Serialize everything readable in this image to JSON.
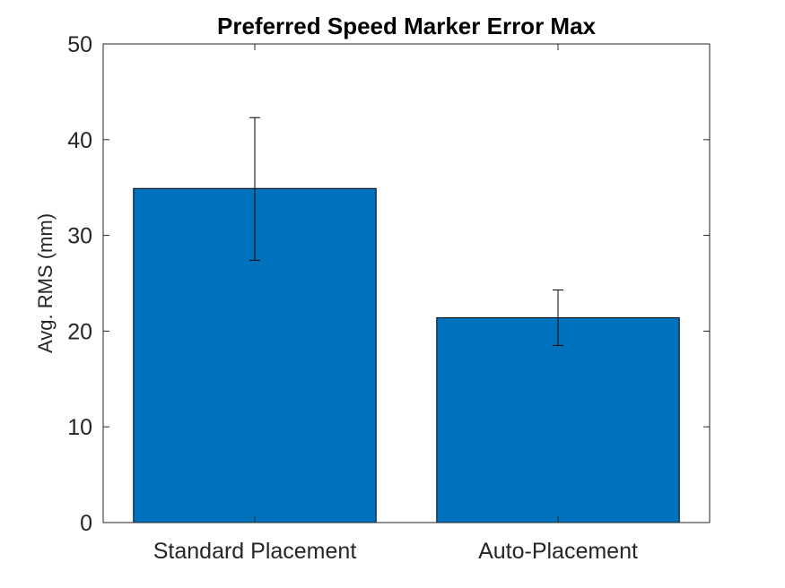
{
  "chart_data": {
    "type": "bar",
    "title": "Preferred Speed Marker Error Max",
    "xlabel": "",
    "ylabel": "Avg. RMS (mm)",
    "categories": [
      "Standard Placement",
      "Auto-Placement"
    ],
    "values": [
      34.9,
      21.4
    ],
    "error_low": [
      27.4,
      18.5
    ],
    "error_high": [
      42.3,
      24.3
    ],
    "ylim": [
      0,
      50
    ],
    "yticks": [
      0,
      10,
      20,
      30,
      40,
      50
    ],
    "bar_color": "#0072BD",
    "grid": false,
    "box": true
  }
}
